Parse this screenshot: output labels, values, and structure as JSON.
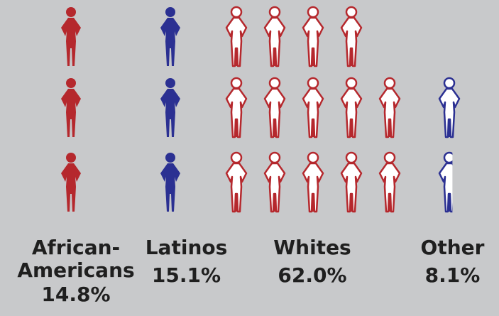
{
  "chart_data": {
    "type": "pictogram",
    "categories": [
      {
        "label_lines": [
          "African-",
          "Americans"
        ],
        "value_label": "14.8%",
        "value": 14.8,
        "color": "#b5282d",
        "style": "filled",
        "icons_per_row": [
          1,
          1,
          1
        ]
      },
      {
        "label_lines": [
          "Latinos"
        ],
        "value_label": "15.1%",
        "value": 15.1,
        "color": "#2b3092",
        "style": "filled",
        "icons_per_row": [
          1,
          1,
          1
        ]
      },
      {
        "label_lines": [
          "Whites"
        ],
        "value_label": "62.0%",
        "value": 62.0,
        "color": "#b5282d",
        "style": "outline",
        "icons_per_row": [
          4,
          5,
          5
        ]
      },
      {
        "label_lines": [
          "Other"
        ],
        "value_label": "8.1%",
        "value": 8.1,
        "color": "#2b3092",
        "style": "outline",
        "icons_per_row": [
          0,
          1,
          0.6
        ]
      }
    ]
  }
}
